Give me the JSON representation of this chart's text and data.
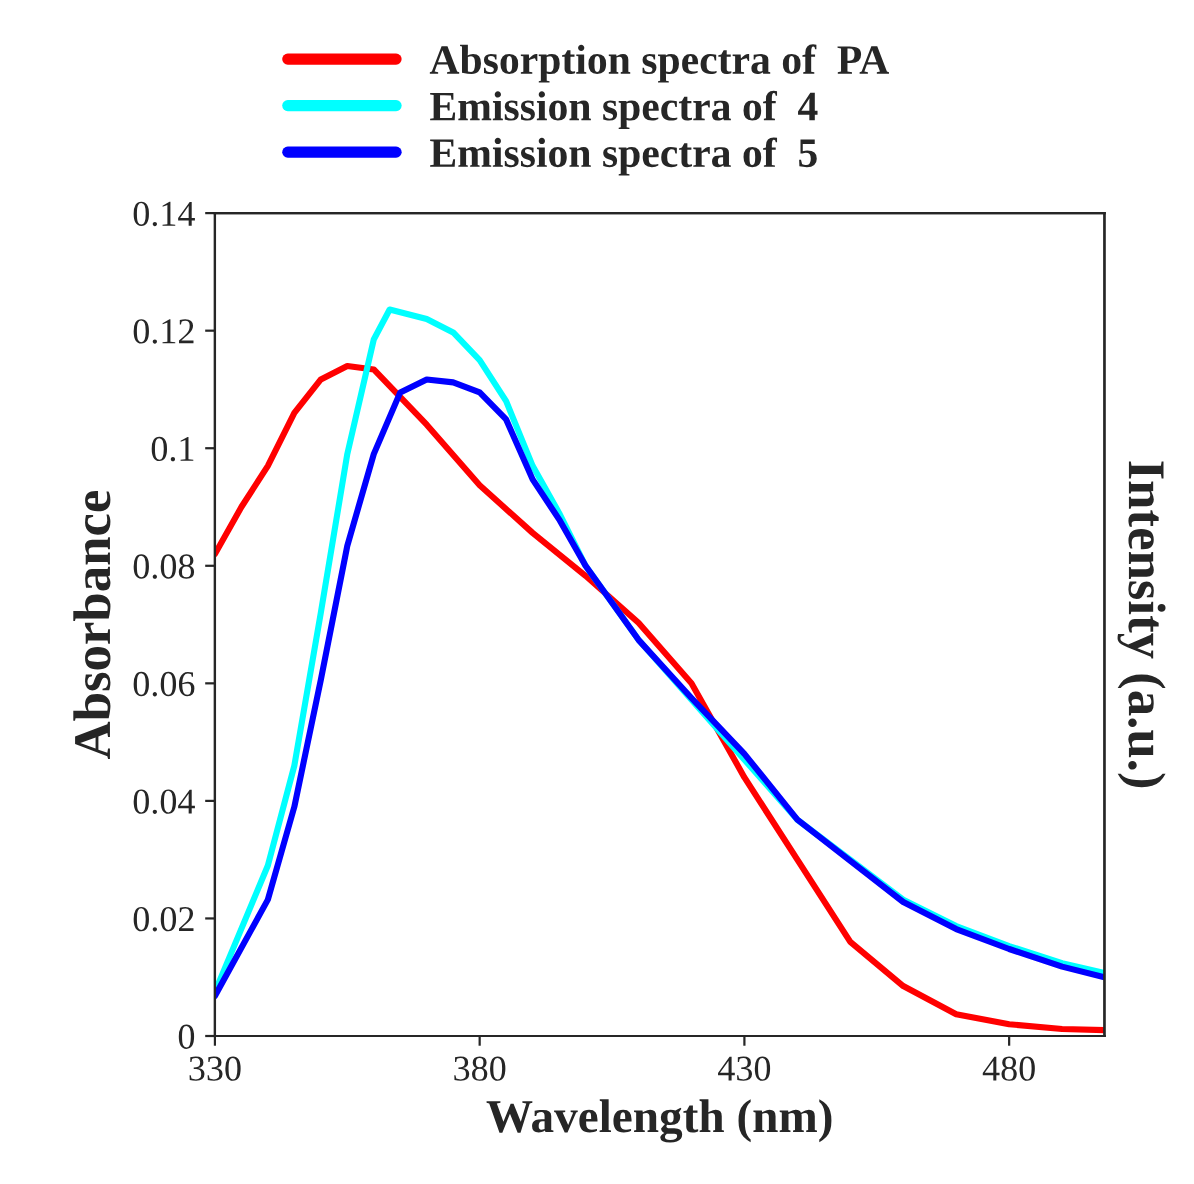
{
  "chart_data": {
    "type": "line",
    "xlabel": "Wavelength (nm)",
    "ylabel": "Absorbance",
    "y2label": "Intensity (a.u.)",
    "xlim": [
      330,
      498
    ],
    "xticks": [
      330,
      380,
      430,
      480
    ],
    "ylim": [
      0,
      0.14
    ],
    "yticks": [
      0,
      0.02,
      0.04,
      0.06,
      0.08,
      0.1,
      0.12,
      0.14
    ],
    "grid": false,
    "legend": "top",
    "line_style": "solid",
    "marker": "none",
    "series": [
      {
        "name": "Absorption spectra of  PA",
        "color": "#ff0000",
        "x": [
          330,
          335,
          340,
          345,
          350,
          355,
          360,
          370,
          380,
          390,
          400,
          410,
          420,
          430,
          440,
          450,
          460,
          470,
          480,
          490,
          498
        ],
        "values": [
          0.082,
          0.09,
          0.097,
          0.106,
          0.1117,
          0.114,
          0.1134,
          0.104,
          0.0937,
          0.0856,
          0.0783,
          0.0703,
          0.06,
          0.044,
          0.03,
          0.016,
          0.0085,
          0.0037,
          0.002,
          0.0012,
          0.001
        ]
      },
      {
        "name": "Emission spectra of  4",
        "color": "#00ffff",
        "x": [
          330,
          340,
          345,
          350,
          355,
          360,
          363,
          370,
          375,
          380,
          385,
          390,
          395,
          400,
          410,
          420,
          430,
          440,
          450,
          460,
          470,
          480,
          490,
          498
        ],
        "values": [
          0.0075,
          0.029,
          0.046,
          0.072,
          0.099,
          0.1185,
          0.1236,
          0.122,
          0.1197,
          0.115,
          0.108,
          0.097,
          0.089,
          0.08,
          0.0674,
          0.0572,
          0.047,
          0.0368,
          0.03,
          0.0232,
          0.0187,
          0.0153,
          0.0124,
          0.0107
        ]
      },
      {
        "name": "Emission spectra of  5",
        "color": "#0000ff",
        "x": [
          330,
          340,
          345,
          350,
          355,
          360,
          365,
          370,
          375,
          380,
          385,
          390,
          395,
          400,
          410,
          420,
          430,
          440,
          450,
          460,
          470,
          480,
          490,
          498
        ],
        "values": [
          0.0068,
          0.0232,
          0.039,
          0.0606,
          0.0834,
          0.099,
          0.1095,
          0.1117,
          0.1112,
          0.1095,
          0.1049,
          0.0947,
          0.0879,
          0.08,
          0.0674,
          0.0575,
          0.048,
          0.0368,
          0.0298,
          0.0228,
          0.0182,
          0.0148,
          0.0118,
          0.01
        ]
      }
    ]
  }
}
